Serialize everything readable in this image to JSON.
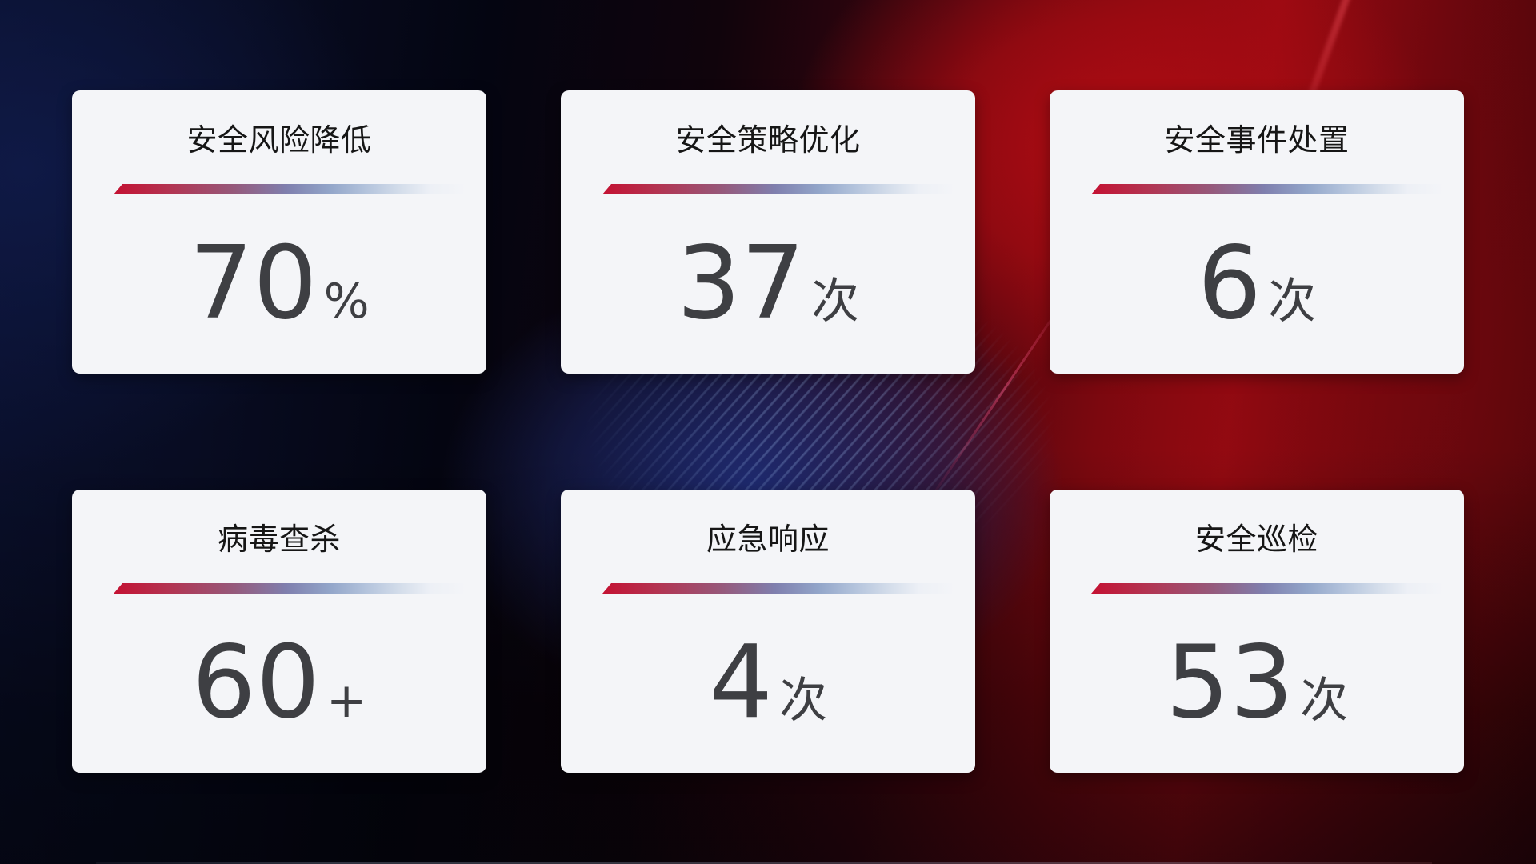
{
  "cards": [
    {
      "title": "安全风险降低",
      "value": "70",
      "unit": "%"
    },
    {
      "title": "安全策略优化",
      "value": "37",
      "unit": "次"
    },
    {
      "title": "安全事件处置",
      "value": "6",
      "unit": "次"
    },
    {
      "title": "病毒查杀",
      "value": "60",
      "unit": "+"
    },
    {
      "title": "应急响应",
      "value": "4",
      "unit": "次"
    },
    {
      "title": "安全巡检",
      "value": "53",
      "unit": "次"
    }
  ],
  "colors": {
    "background_navy": "#0a1030",
    "background_red": "#a80b12",
    "card_background": "#f4f5f8",
    "title_text": "#161616",
    "value_text": "#3e3f43",
    "divider_red": "#c41132",
    "divider_blue": "#7f7fae",
    "divider_light": "#edf0f6"
  }
}
